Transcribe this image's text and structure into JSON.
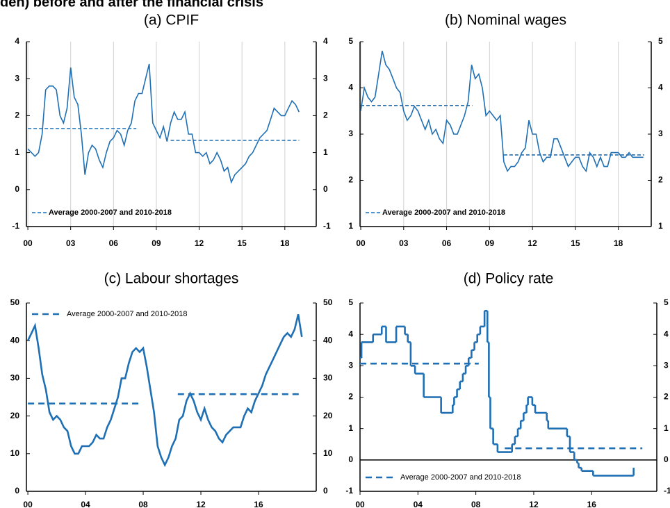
{
  "heading": "den) before and after the financial crisis",
  "chart_data": [
    {
      "type": "line",
      "title": "(a) CPIF",
      "xlim": [
        1999.9,
        2020.2
      ],
      "ylim": [
        -1,
        4
      ],
      "xticks": [
        {
          "value": 2000,
          "label": "00"
        },
        {
          "value": 2003,
          "label": "03"
        },
        {
          "value": 2006,
          "label": "06"
        },
        {
          "value": 2009,
          "label": "09"
        },
        {
          "value": 2012,
          "label": "12"
        },
        {
          "value": 2015,
          "label": "15"
        },
        {
          "value": 2018,
          "label": "18"
        }
      ],
      "yticks": [
        -1,
        0,
        1,
        2,
        3,
        4
      ],
      "grid": true,
      "legend": "lower left",
      "series": [
        {
          "color": "#1f6fb4",
          "x": [
            2000,
            2000.25,
            2000.5,
            2000.75,
            2001,
            2001.25,
            2001.5,
            2001.75,
            2002,
            2002.25,
            2002.5,
            2002.75,
            2003,
            2003.25,
            2003.5,
            2003.75,
            2004,
            2004.25,
            2004.5,
            2004.75,
            2005,
            2005.25,
            2005.5,
            2005.75,
            2006,
            2006.25,
            2006.5,
            2006.75,
            2007,
            2007.25,
            2007.5,
            2007.75,
            2008,
            2008.25,
            2008.5,
            2008.75,
            2009,
            2009.25,
            2009.5,
            2009.75,
            2010,
            2010.25,
            2010.5,
            2010.75,
            2011,
            2011.25,
            2011.5,
            2011.75,
            2012,
            2012.25,
            2012.5,
            2012.75,
            2013,
            2013.25,
            2013.5,
            2013.75,
            2014,
            2014.25,
            2014.5,
            2014.75,
            2015,
            2015.25,
            2015.5,
            2015.75,
            2016,
            2016.25,
            2016.5,
            2016.75,
            2017,
            2017.25,
            2017.5,
            2017.75,
            2018,
            2018.25,
            2018.5,
            2018.75,
            2019
          ],
          "values": [
            1.1,
            1.0,
            0.9,
            1.0,
            1.5,
            2.7,
            2.8,
            2.8,
            2.7,
            2.0,
            1.8,
            2.2,
            3.3,
            2.5,
            2.3,
            1.5,
            0.4,
            1.0,
            1.2,
            1.1,
            0.8,
            0.6,
            1.0,
            1.3,
            1.4,
            1.6,
            1.5,
            1.2,
            1.6,
            1.8,
            2.4,
            2.6,
            2.6,
            3.0,
            3.4,
            1.8,
            1.6,
            1.4,
            1.7,
            1.3,
            1.8,
            2.1,
            1.9,
            1.9,
            2.1,
            1.5,
            1.5,
            1.0,
            1.0,
            0.9,
            1.0,
            0.7,
            0.8,
            1.0,
            0.8,
            0.5,
            0.6,
            0.2,
            0.4,
            0.5,
            0.6,
            0.7,
            0.9,
            1.0,
            1.2,
            1.4,
            1.5,
            1.6,
            1.9,
            2.2,
            2.1,
            2.0,
            2.0,
            2.2,
            2.4,
            2.3,
            2.1
          ]
        },
        {
          "name": "Average 2000-2007 and 2010-2018",
          "color": "#1f6fb4",
          "linestyle": "dashed",
          "x": [
            2000,
            2007.6,
            2009,
            2010,
            2019
          ],
          "values": [
            1.65,
            1.65,
            null,
            1.33,
            1.33
          ]
        }
      ]
    },
    {
      "type": "line",
      "title": "(b) Nominal wages",
      "xlim": [
        1999.95,
        2020.3
      ],
      "ylim": [
        1,
        5
      ],
      "xticks": [
        {
          "value": 2000,
          "label": "00"
        },
        {
          "value": 2003,
          "label": "03"
        },
        {
          "value": 2006,
          "label": "06"
        },
        {
          "value": 2009,
          "label": "09"
        },
        {
          "value": 2012,
          "label": "12"
        },
        {
          "value": 2015,
          "label": "15"
        },
        {
          "value": 2018,
          "label": "18"
        }
      ],
      "yticks": [
        1,
        2,
        3,
        4,
        5
      ],
      "grid": true,
      "legend": "lower left",
      "series": [
        {
          "color": "#1f6fb4",
          "x": [
            2000,
            2000.25,
            2000.5,
            2000.75,
            2001,
            2001.25,
            2001.5,
            2001.75,
            2002,
            2002.25,
            2002.5,
            2002.75,
            2003,
            2003.25,
            2003.5,
            2003.75,
            2004,
            2004.25,
            2004.5,
            2004.75,
            2005,
            2005.25,
            2005.5,
            2005.75,
            2006,
            2006.25,
            2006.5,
            2006.75,
            2007,
            2007.25,
            2007.5,
            2007.75,
            2008,
            2008.25,
            2008.5,
            2008.75,
            2009,
            2009.25,
            2009.5,
            2009.75,
            2010,
            2010.25,
            2010.5,
            2010.75,
            2011,
            2011.25,
            2011.5,
            2011.75,
            2012,
            2012.25,
            2012.5,
            2012.75,
            2013,
            2013.25,
            2013.5,
            2013.75,
            2014,
            2014.25,
            2014.5,
            2014.75,
            2015,
            2015.25,
            2015.5,
            2015.75,
            2016,
            2016.25,
            2016.5,
            2016.75,
            2017,
            2017.25,
            2017.5,
            2017.75,
            2018,
            2018.25,
            2018.5,
            2018.75,
            2019,
            2019.25,
            2019.5,
            2019.75
          ],
          "values": [
            3.5,
            4.0,
            3.8,
            3.7,
            3.8,
            4.3,
            4.8,
            4.5,
            4.4,
            4.2,
            4.0,
            3.9,
            3.5,
            3.3,
            3.4,
            3.6,
            3.5,
            3.3,
            3.1,
            3.3,
            3.0,
            3.1,
            2.9,
            2.8,
            3.3,
            3.2,
            3.0,
            3.0,
            3.2,
            3.4,
            3.7,
            4.5,
            4.2,
            4.3,
            4.0,
            3.4,
            3.5,
            3.4,
            3.3,
            3.4,
            2.4,
            2.2,
            2.3,
            2.3,
            2.4,
            2.6,
            2.7,
            3.3,
            3.0,
            3.0,
            2.6,
            2.4,
            2.5,
            2.5,
            2.9,
            2.9,
            2.7,
            2.5,
            2.3,
            2.4,
            2.5,
            2.5,
            2.3,
            2.2,
            2.6,
            2.5,
            2.3,
            2.5,
            2.3,
            2.3,
            2.6,
            2.6,
            2.6,
            2.5,
            2.5,
            2.6,
            2.5,
            2.5,
            2.5,
            2.5
          ]
        },
        {
          "name": "Average 2000-2007 and 2010-2018",
          "color": "#1f6fb4",
          "linestyle": "dashed",
          "x": [
            2000,
            2007.8,
            2009,
            2010,
            2019.8
          ],
          "values": [
            3.62,
            3.62,
            null,
            2.55,
            2.55
          ]
        }
      ]
    },
    {
      "type": "line",
      "title": "(c) Labour shortages",
      "xlim": [
        1999.9,
        2020.0
      ],
      "ylim": [
        0,
        50
      ],
      "xticks": [
        {
          "value": 2000,
          "label": "00"
        },
        {
          "value": 2004,
          "label": "04"
        },
        {
          "value": 2008,
          "label": "08"
        },
        {
          "value": 2012,
          "label": "12"
        },
        {
          "value": 2016,
          "label": "16"
        }
      ],
      "yticks": [
        0,
        10,
        20,
        30,
        40,
        50
      ],
      "grid": false,
      "legend": "upper left",
      "series": [
        {
          "color": "#1f6fb4",
          "x": [
            2000,
            2000.25,
            2000.5,
            2000.75,
            2001,
            2001.25,
            2001.5,
            2001.75,
            2002,
            2002.25,
            2002.5,
            2002.75,
            2003,
            2003.25,
            2003.5,
            2003.75,
            2004,
            2004.25,
            2004.5,
            2004.75,
            2005,
            2005.25,
            2005.5,
            2005.75,
            2006,
            2006.25,
            2006.5,
            2006.75,
            2007,
            2007.25,
            2007.5,
            2007.75,
            2008,
            2008.25,
            2008.5,
            2008.75,
            2009,
            2009.25,
            2009.5,
            2009.75,
            2010,
            2010.25,
            2010.5,
            2010.75,
            2011,
            2011.25,
            2011.5,
            2011.75,
            2012,
            2012.25,
            2012.5,
            2012.75,
            2013,
            2013.25,
            2013.5,
            2013.75,
            2014,
            2014.25,
            2014.5,
            2014.75,
            2015,
            2015.25,
            2015.5,
            2015.75,
            2016,
            2016.25,
            2016.5,
            2016.75,
            2017,
            2017.25,
            2017.5,
            2017.75,
            2018,
            2018.25,
            2018.5,
            2018.75,
            2019
          ],
          "values": [
            40,
            42,
            44,
            38,
            31,
            27,
            21,
            19,
            20,
            19,
            17,
            16,
            12,
            10,
            10,
            12,
            12,
            12,
            13,
            15,
            14,
            14,
            17,
            19,
            22,
            25,
            30,
            30,
            34,
            37,
            38,
            37,
            38,
            33,
            27,
            21,
            12,
            9,
            7,
            9,
            12,
            14,
            19,
            20,
            24,
            26,
            24,
            21,
            19,
            22,
            19,
            17,
            16,
            14,
            13,
            15,
            16,
            17,
            17,
            17,
            20,
            22,
            21,
            24,
            26,
            28,
            31,
            33,
            35,
            37,
            39,
            41,
            42,
            41,
            43,
            47,
            41
          ]
        },
        {
          "name": "Average 2000-2007 and 2010-2018",
          "color": "#1f6fb4",
          "linestyle": "dashed",
          "x": [
            2000,
            2007.9,
            2009,
            2010.4,
            2018.8
          ],
          "values": [
            23.3,
            23.3,
            null,
            25.8,
            25.8
          ]
        }
      ]
    },
    {
      "type": "line",
      "title": "(d) Policy rate",
      "xlim": [
        2000,
        2020.5
      ],
      "ylim": [
        -1,
        5
      ],
      "xticks": [
        {
          "value": 2000,
          "label": "00"
        },
        {
          "value": 2004,
          "label": "04"
        },
        {
          "value": 2008,
          "label": "08"
        },
        {
          "value": 2012,
          "label": "12"
        },
        {
          "value": 2016,
          "label": "16"
        }
      ],
      "yticks": [
        -1,
        0,
        1,
        2,
        3,
        4,
        5
      ],
      "grid": false,
      "zero_line": true,
      "legend": "lower left",
      "series": [
        {
          "color": "#1f6fb4",
          "drawstyle": "steps-post",
          "x": [
            2000,
            2000.1,
            2000.9,
            2001.5,
            2001.8,
            2002.5,
            2003.1,
            2003.3,
            2003.5,
            2003.8,
            2004.4,
            2005.6,
            2006.4,
            2006.5,
            2006.7,
            2006.9,
            2007.1,
            2007.3,
            2007.5,
            2007.7,
            2007.9,
            2008.1,
            2008.3,
            2008.6,
            2008.8,
            2008.9,
            2009.0,
            2009.2,
            2009.5,
            2010.5,
            2010.7,
            2010.9,
            2011.1,
            2011.3,
            2011.5,
            2011.6,
            2011.9,
            2012.1,
            2012.9,
            2013.0,
            2014.3,
            2014.5,
            2014.8,
            2015.0,
            2015.1,
            2015.3,
            2016.1,
            2018.9
          ],
          "values": [
            3.25,
            3.75,
            4.0,
            4.25,
            3.75,
            4.25,
            4.0,
            3.75,
            3.0,
            2.75,
            2.0,
            1.5,
            1.75,
            2.0,
            2.25,
            2.5,
            2.75,
            3.0,
            3.25,
            3.5,
            3.75,
            4.0,
            4.25,
            4.75,
            3.75,
            2.0,
            1.0,
            0.5,
            0.25,
            0.5,
            0.75,
            1.0,
            1.25,
            1.5,
            1.75,
            2.0,
            1.75,
            1.5,
            1.25,
            1.0,
            0.75,
            0.25,
            0.0,
            -0.1,
            -0.25,
            -0.35,
            -0.5,
            -0.25
          ]
        },
        {
          "name": "Average 2000-2007 and 2010-2018",
          "color": "#1f6fb4",
          "linestyle": "dashed",
          "x": [
            2000,
            2008.2,
            2009,
            2010,
            2019.5
          ],
          "values": [
            3.07,
            3.07,
            null,
            0.37,
            0.37
          ]
        }
      ]
    }
  ]
}
